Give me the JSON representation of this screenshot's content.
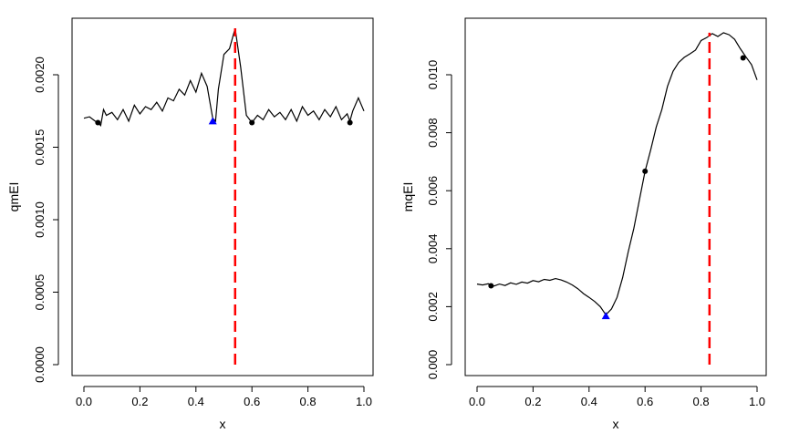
{
  "chart_data": [
    {
      "type": "line",
      "xlabel": "x",
      "ylabel": "qmEI",
      "xlim": [
        0,
        1
      ],
      "ylim": [
        0,
        0.0023
      ],
      "xticks": [
        0.0,
        0.2,
        0.4,
        0.6,
        0.8,
        1.0
      ],
      "xtick_labels": [
        "0.0",
        "0.2",
        "0.4",
        "0.6",
        "0.8",
        "1.0"
      ],
      "yticks": [
        0.0,
        0.0005,
        0.001,
        0.0015,
        0.002
      ],
      "ytick_labels": [
        "0.0000",
        "0.0005",
        "0.0010",
        "0.0015",
        "0.0020"
      ],
      "grid": false,
      "colors": {
        "line": "#000000",
        "design_points": "#000000",
        "current_best": "#0000ff",
        "max_line": "#ff0000"
      },
      "x": [
        0.0,
        0.02,
        0.04,
        0.05,
        0.06,
        0.07,
        0.08,
        0.1,
        0.12,
        0.14,
        0.16,
        0.18,
        0.2,
        0.22,
        0.24,
        0.26,
        0.28,
        0.3,
        0.32,
        0.34,
        0.36,
        0.38,
        0.4,
        0.42,
        0.44,
        0.46,
        0.47,
        0.48,
        0.5,
        0.52,
        0.54,
        0.56,
        0.58,
        0.6,
        0.62,
        0.64,
        0.66,
        0.68,
        0.7,
        0.72,
        0.74,
        0.76,
        0.78,
        0.8,
        0.82,
        0.84,
        0.86,
        0.88,
        0.9,
        0.92,
        0.94,
        0.95,
        0.96,
        0.98,
        1.0
      ],
      "y": [
        0.0017,
        0.00171,
        0.00168,
        0.00167,
        0.00165,
        0.00176,
        0.00172,
        0.00174,
        0.00169,
        0.00176,
        0.00168,
        0.00179,
        0.00173,
        0.00178,
        0.00176,
        0.00181,
        0.00175,
        0.00184,
        0.00182,
        0.0019,
        0.00186,
        0.00196,
        0.00188,
        0.00201,
        0.00192,
        0.0017,
        0.00168,
        0.0019,
        0.00214,
        0.00218,
        0.00232,
        0.00205,
        0.00172,
        0.00167,
        0.00172,
        0.00169,
        0.00176,
        0.00171,
        0.00174,
        0.00169,
        0.00176,
        0.00168,
        0.00178,
        0.00172,
        0.00175,
        0.00169,
        0.00176,
        0.00171,
        0.00178,
        0.00169,
        0.00173,
        0.00168,
        0.00175,
        0.00184,
        0.00175
      ],
      "design_points": [
        {
          "x": 0.05,
          "y": 0.00167
        },
        {
          "x": 0.6,
          "y": 0.00167
        },
        {
          "x": 0.95,
          "y": 0.00167
        }
      ],
      "current_best": {
        "x": 0.46,
        "y": 0.00168
      },
      "max_line_x": 0.54,
      "max_line_ytop": 0.00232
    },
    {
      "type": "line",
      "xlabel": "x",
      "ylabel": "mqEI",
      "xlim": [
        0,
        1
      ],
      "ylim": [
        0,
        0.0115
      ],
      "xticks": [
        0.0,
        0.2,
        0.4,
        0.6,
        0.8,
        1.0
      ],
      "xtick_labels": [
        "0.0",
        "0.2",
        "0.4",
        "0.6",
        "0.8",
        "1.0"
      ],
      "yticks": [
        0.0,
        0.002,
        0.004,
        0.006,
        0.008,
        0.01
      ],
      "ytick_labels": [
        "0.000",
        "0.002",
        "0.004",
        "0.006",
        "0.008",
        "0.010"
      ],
      "grid": false,
      "colors": {
        "line": "#000000",
        "design_points": "#000000",
        "current_best": "#0000ff",
        "max_line": "#ff0000"
      },
      "x": [
        0.0,
        0.02,
        0.04,
        0.06,
        0.08,
        0.1,
        0.12,
        0.14,
        0.16,
        0.18,
        0.2,
        0.22,
        0.24,
        0.26,
        0.28,
        0.3,
        0.32,
        0.34,
        0.36,
        0.38,
        0.4,
        0.42,
        0.44,
        0.46,
        0.48,
        0.5,
        0.52,
        0.54,
        0.56,
        0.58,
        0.6,
        0.62,
        0.64,
        0.66,
        0.68,
        0.7,
        0.72,
        0.74,
        0.76,
        0.78,
        0.8,
        0.82,
        0.84,
        0.86,
        0.88,
        0.9,
        0.92,
        0.94,
        0.96,
        0.98,
        1.0
      ],
      "y": [
        0.00278,
        0.00275,
        0.00279,
        0.00271,
        0.00278,
        0.00273,
        0.00282,
        0.00277,
        0.00285,
        0.00281,
        0.0029,
        0.00286,
        0.00294,
        0.00291,
        0.00297,
        0.00292,
        0.00285,
        0.00275,
        0.00262,
        0.00245,
        0.00232,
        0.00218,
        0.002,
        0.00172,
        0.00192,
        0.00232,
        0.003,
        0.0039,
        0.0047,
        0.0057,
        0.00667,
        0.0074,
        0.0082,
        0.0088,
        0.0096,
        0.01012,
        0.01042,
        0.0106,
        0.01072,
        0.01085,
        0.01118,
        0.01128,
        0.01142,
        0.01132,
        0.01145,
        0.01138,
        0.01122,
        0.0109,
        0.01062,
        0.01035,
        0.00982
      ],
      "design_points": [
        {
          "x": 0.05,
          "y": 0.00272
        },
        {
          "x": 0.6,
          "y": 0.00667
        },
        {
          "x": 0.95,
          "y": 0.01058
        }
      ],
      "current_best": {
        "x": 0.46,
        "y": 0.00168
      },
      "max_line_x": 0.83,
      "max_line_ytop": 0.01145
    }
  ]
}
